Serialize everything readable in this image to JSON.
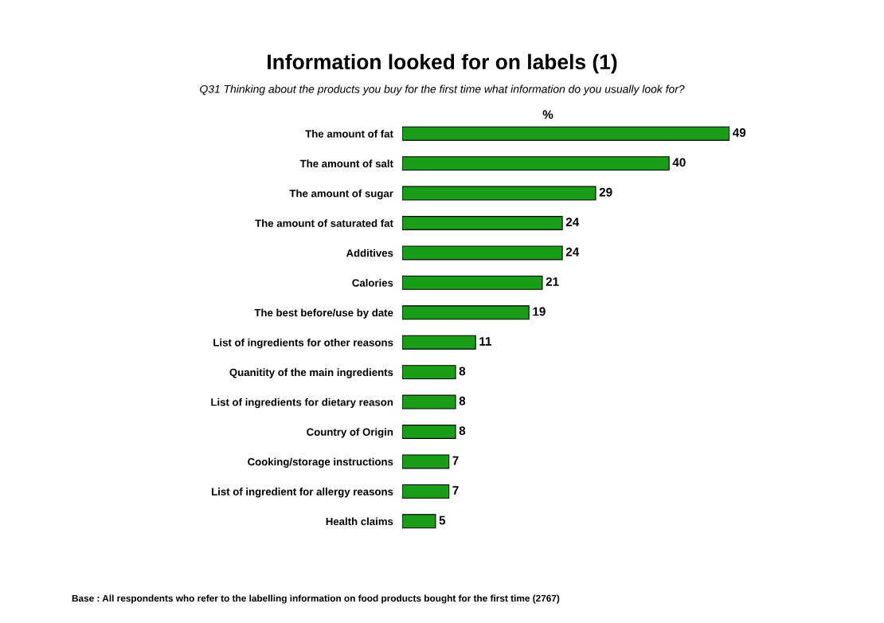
{
  "chart_data": {
    "type": "bar",
    "orientation": "horizontal",
    "title": "Information looked for on labels (1)",
    "subtitle": "Q31 Thinking about the products you buy for the first time what information do you usually look for?",
    "xlabel": "%",
    "categories": [
      "The amount of fat",
      "The amount of salt",
      "The amount of sugar",
      "The amount of saturated fat",
      "Additives",
      "Calories",
      "The best before/use by date",
      "List of ingredients for other reasons",
      "Quanitity of the main ingredients",
      "List of ingredients for dietary reason",
      "Country of Origin",
      "Cooking/storage instructions",
      "List of ingredient for allergy reasons",
      "Health claims"
    ],
    "values": [
      49,
      40,
      29,
      24,
      24,
      21,
      19,
      11,
      8,
      8,
      8,
      7,
      7,
      5
    ],
    "color": "#1a9e1a",
    "data_labels": true,
    "annotations": [
      "Base : All respondents who refer to the labelling information on food products bought for the first time (2767)"
    ]
  }
}
